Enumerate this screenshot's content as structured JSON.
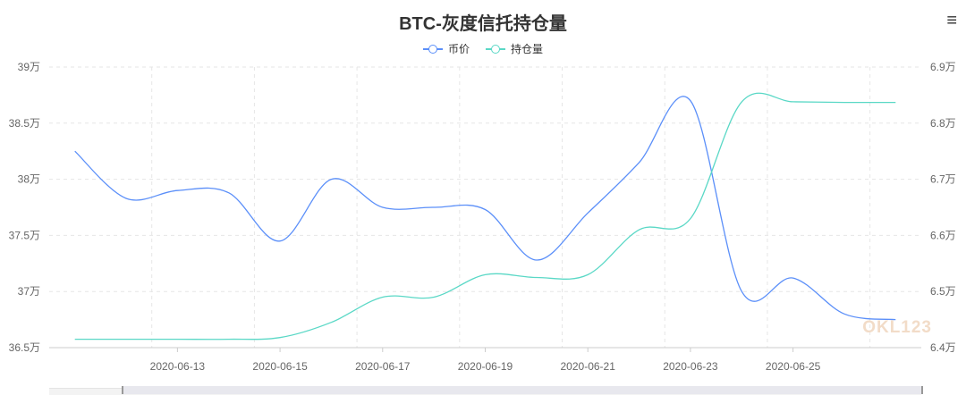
{
  "chart_data": {
    "type": "line",
    "title": "BTC-灰度信托持仓量",
    "x": [
      "2020-06-11",
      "2020-06-12",
      "2020-06-13",
      "2020-06-14",
      "2020-06-15",
      "2020-06-16",
      "2020-06-17",
      "2020-06-18",
      "2020-06-19",
      "2020-06-20",
      "2020-06-21",
      "2020-06-22",
      "2020-06-23",
      "2020-06-24",
      "2020-06-25",
      "2020-06-26",
      "2020-06-27"
    ],
    "x_tick_labels": [
      "2020-06-13",
      "2020-06-15",
      "2020-06-17",
      "2020-06-19",
      "2020-06-21",
      "2020-06-23",
      "2020-06-25"
    ],
    "series": [
      {
        "name": "币价",
        "axis": "left",
        "color": "#5b8ff9",
        "values": [
          38.25,
          37.83,
          37.9,
          37.88,
          37.45,
          38.0,
          37.75,
          37.75,
          37.73,
          37.28,
          37.7,
          38.15,
          38.7,
          37.0,
          37.12,
          36.8,
          36.75
        ]
      },
      {
        "name": "持仓量",
        "axis": "right",
        "color": "#5ad8c6",
        "values": [
          6.415,
          6.415,
          6.415,
          6.415,
          6.418,
          6.445,
          6.49,
          6.49,
          6.53,
          6.525,
          6.53,
          6.61,
          6.63,
          6.838,
          6.838,
          6.837,
          6.837
        ]
      }
    ],
    "y_left": {
      "min": 36.5,
      "max": 39,
      "ticks": [
        "36.5万",
        "37万",
        "37.5万",
        "38万",
        "38.5万",
        "39万"
      ]
    },
    "y_right": {
      "min": 6.4,
      "max": 6.9,
      "ticks": [
        "6.4万",
        "6.5万",
        "6.6万",
        "6.7万",
        "6.8万",
        "6.9万"
      ]
    },
    "grid": true,
    "legend_position": "top-center"
  },
  "ui": {
    "menu_icon": "≡",
    "watermark": "OKL123"
  }
}
